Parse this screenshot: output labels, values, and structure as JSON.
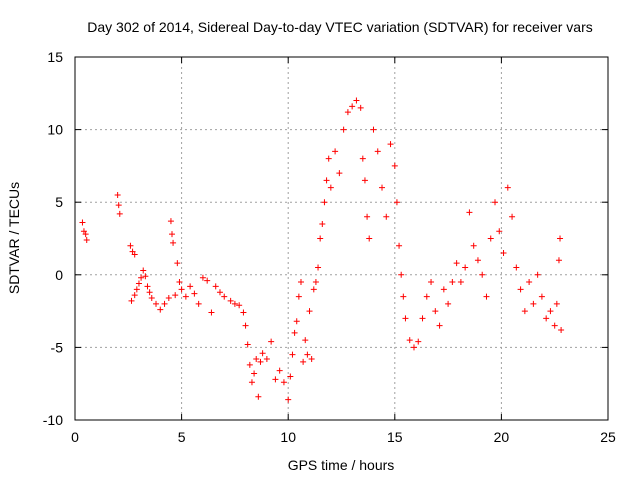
{
  "chart_data": {
    "type": "scatter",
    "title": "Day 302 of 2014, Sidereal Day-to-day VTEC variation (SDTVAR) for receiver vars",
    "xlabel": "GPS time / hours",
    "ylabel": "SDTVAR / TECUs",
    "xlim": [
      0,
      25
    ],
    "ylim": [
      -10,
      15
    ],
    "xticks": [
      0,
      5,
      10,
      15,
      20,
      25
    ],
    "yticks": [
      -10,
      -5,
      0,
      5,
      10,
      15
    ],
    "grid": true,
    "marker": "plus",
    "color": "#ff0000",
    "series": [
      {
        "name": "receiver vars",
        "points": [
          [
            0.35,
            3.6
          ],
          [
            0.42,
            3.0
          ],
          [
            0.5,
            2.8
          ],
          [
            0.55,
            2.4
          ],
          [
            2.0,
            5.5
          ],
          [
            2.05,
            4.8
          ],
          [
            2.1,
            4.2
          ],
          [
            2.6,
            2.0
          ],
          [
            2.7,
            1.6
          ],
          [
            2.8,
            1.4
          ],
          [
            2.65,
            -1.8
          ],
          [
            2.8,
            -1.4
          ],
          [
            2.9,
            -1.0
          ],
          [
            3.0,
            -0.6
          ],
          [
            3.1,
            -0.2
          ],
          [
            3.2,
            0.3
          ],
          [
            3.3,
            -0.1
          ],
          [
            3.4,
            -0.8
          ],
          [
            3.5,
            -1.2
          ],
          [
            3.6,
            -1.6
          ],
          [
            3.8,
            -2.0
          ],
          [
            4.0,
            -2.4
          ],
          [
            4.2,
            -2.0
          ],
          [
            4.4,
            -1.6
          ],
          [
            4.5,
            3.7
          ],
          [
            4.55,
            2.8
          ],
          [
            4.6,
            2.2
          ],
          [
            4.7,
            -1.4
          ],
          [
            4.8,
            0.8
          ],
          [
            4.9,
            -0.5
          ],
          [
            5.0,
            -1.0
          ],
          [
            5.2,
            -1.5
          ],
          [
            5.4,
            -0.8
          ],
          [
            5.6,
            -1.3
          ],
          [
            5.8,
            -2.0
          ],
          [
            6.0,
            -0.2
          ],
          [
            6.2,
            -0.4
          ],
          [
            6.4,
            -2.6
          ],
          [
            6.6,
            -0.8
          ],
          [
            6.8,
            -1.2
          ],
          [
            7.0,
            -1.5
          ],
          [
            7.3,
            -1.8
          ],
          [
            7.5,
            -2.0
          ],
          [
            7.7,
            -2.1
          ],
          [
            7.9,
            -2.6
          ],
          [
            8.0,
            -3.5
          ],
          [
            8.1,
            -4.8
          ],
          [
            8.2,
            -6.2
          ],
          [
            8.3,
            -7.4
          ],
          [
            8.4,
            -6.8
          ],
          [
            8.5,
            -5.8
          ],
          [
            8.6,
            -8.4
          ],
          [
            8.7,
            -6.0
          ],
          [
            8.8,
            -5.4
          ],
          [
            9.0,
            -5.8
          ],
          [
            9.2,
            -4.6
          ],
          [
            9.4,
            -7.2
          ],
          [
            9.6,
            -6.6
          ],
          [
            9.8,
            -7.4
          ],
          [
            10.0,
            -8.6
          ],
          [
            10.1,
            -7.0
          ],
          [
            10.2,
            -5.5
          ],
          [
            10.3,
            -4.0
          ],
          [
            10.4,
            -3.2
          ],
          [
            10.5,
            -1.5
          ],
          [
            10.6,
            -0.5
          ],
          [
            10.7,
            -6.0
          ],
          [
            10.8,
            -4.5
          ],
          [
            10.9,
            -5.5
          ],
          [
            11.0,
            -2.5
          ],
          [
            11.1,
            -5.8
          ],
          [
            11.2,
            -1.0
          ],
          [
            11.3,
            -0.5
          ],
          [
            11.4,
            0.5
          ],
          [
            11.5,
            2.5
          ],
          [
            11.6,
            3.5
          ],
          [
            11.7,
            5.0
          ],
          [
            11.8,
            6.5
          ],
          [
            11.9,
            8.0
          ],
          [
            12.0,
            6.0
          ],
          [
            12.2,
            8.5
          ],
          [
            12.4,
            7.0
          ],
          [
            12.6,
            10.0
          ],
          [
            12.8,
            11.2
          ],
          [
            13.0,
            11.6
          ],
          [
            13.2,
            12.0
          ],
          [
            13.4,
            11.5
          ],
          [
            13.5,
            8.0
          ],
          [
            13.6,
            6.5
          ],
          [
            13.7,
            4.0
          ],
          [
            13.8,
            2.5
          ],
          [
            14.0,
            10.0
          ],
          [
            14.2,
            8.5
          ],
          [
            14.4,
            6.0
          ],
          [
            14.6,
            4.0
          ],
          [
            14.8,
            9.0
          ],
          [
            15.0,
            7.5
          ],
          [
            15.1,
            5.0
          ],
          [
            15.2,
            2.0
          ],
          [
            15.3,
            0.0
          ],
          [
            15.4,
            -1.5
          ],
          [
            15.5,
            -3.0
          ],
          [
            15.7,
            -4.5
          ],
          [
            15.9,
            -5.0
          ],
          [
            16.1,
            -4.6
          ],
          [
            16.3,
            -3.0
          ],
          [
            16.5,
            -1.5
          ],
          [
            16.7,
            -0.5
          ],
          [
            16.9,
            -2.5
          ],
          [
            17.1,
            -3.5
          ],
          [
            17.3,
            -1.0
          ],
          [
            17.5,
            -2.0
          ],
          [
            17.7,
            -0.5
          ],
          [
            17.9,
            0.8
          ],
          [
            18.1,
            -0.5
          ],
          [
            18.3,
            0.5
          ],
          [
            18.5,
            4.3
          ],
          [
            18.7,
            2.0
          ],
          [
            18.9,
            1.0
          ],
          [
            19.1,
            0.0
          ],
          [
            19.3,
            -1.5
          ],
          [
            19.5,
            2.5
          ],
          [
            19.7,
            5.0
          ],
          [
            19.9,
            3.0
          ],
          [
            20.1,
            1.5
          ],
          [
            20.3,
            6.0
          ],
          [
            20.5,
            4.0
          ],
          [
            20.7,
            0.5
          ],
          [
            20.9,
            -1.0
          ],
          [
            21.1,
            -2.5
          ],
          [
            21.3,
            -0.5
          ],
          [
            21.5,
            -2.0
          ],
          [
            21.7,
            0.0
          ],
          [
            21.9,
            -1.5
          ],
          [
            22.1,
            -3.0
          ],
          [
            22.3,
            -2.5
          ],
          [
            22.5,
            -3.5
          ],
          [
            22.6,
            -2.0
          ],
          [
            22.7,
            1.0
          ],
          [
            22.75,
            2.5
          ],
          [
            22.8,
            -3.8
          ]
        ]
      }
    ]
  }
}
